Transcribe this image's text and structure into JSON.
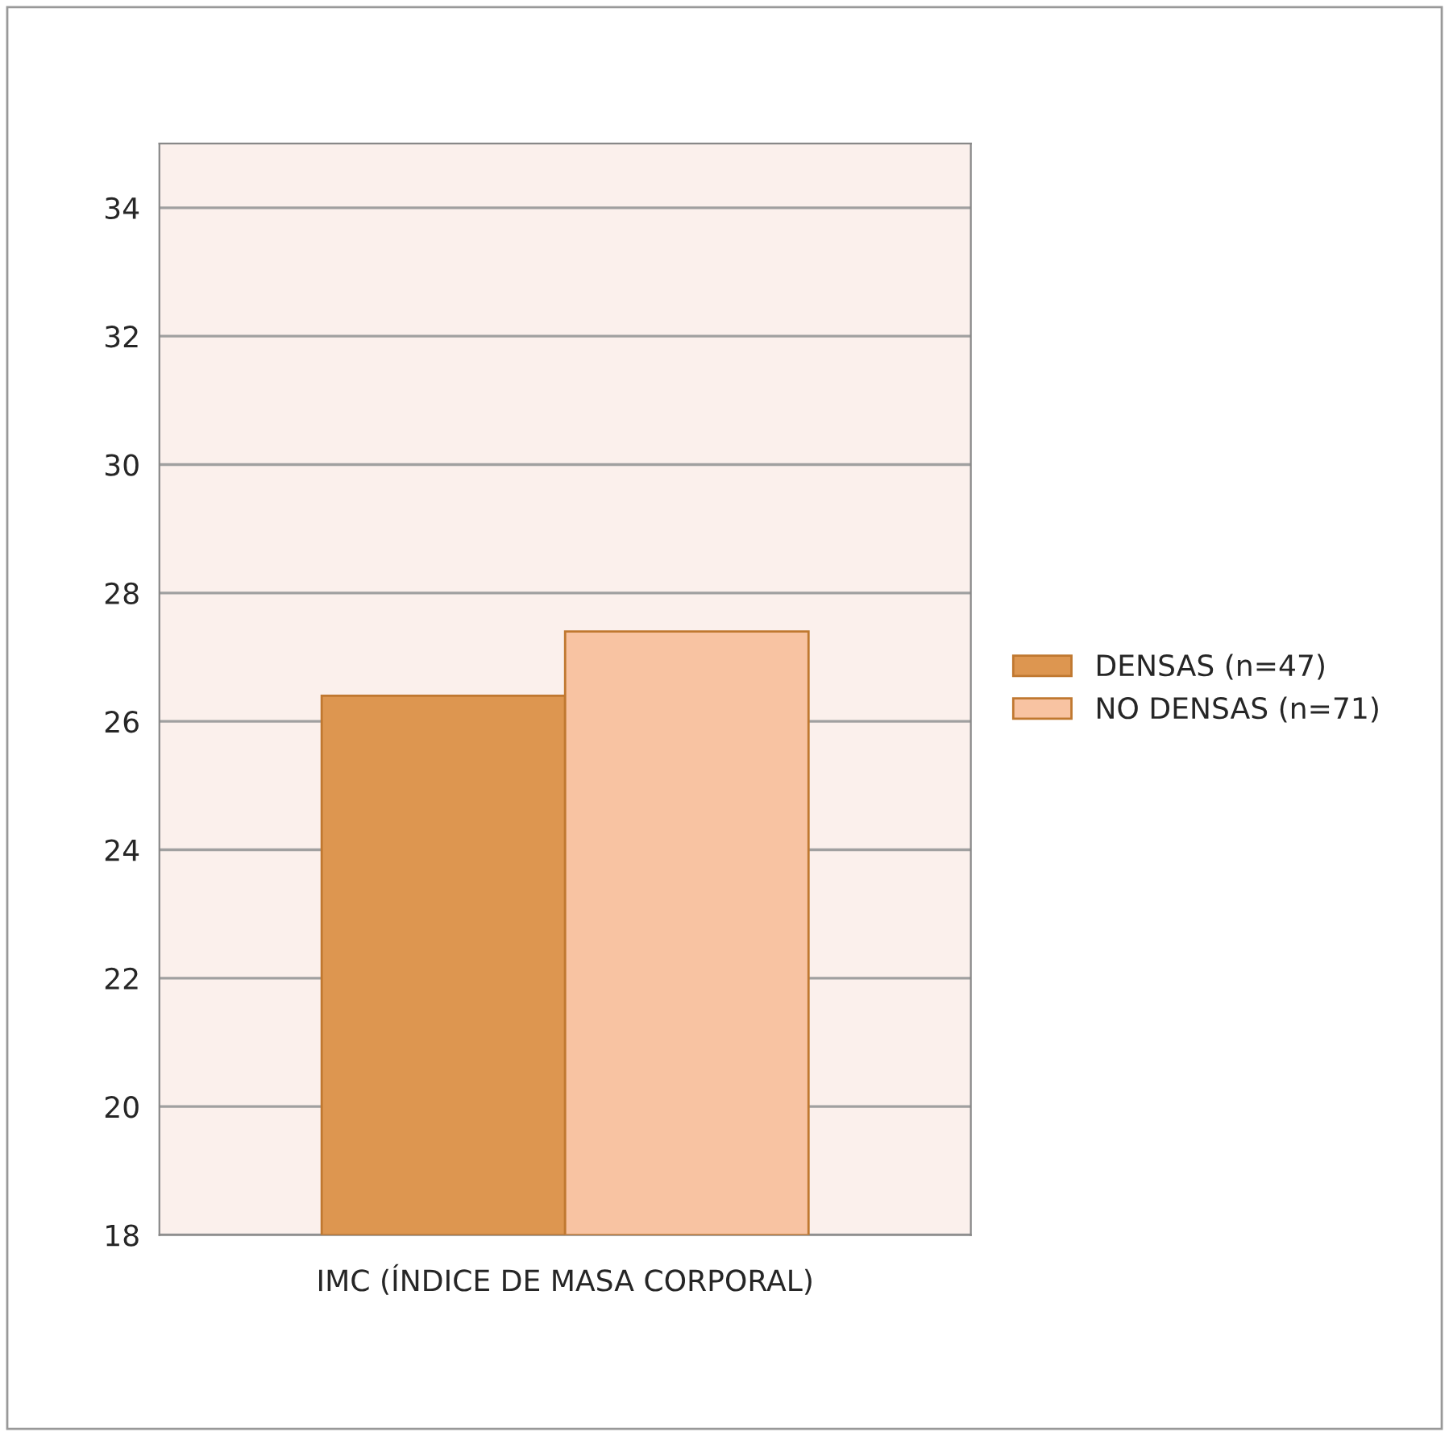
{
  "chart_data": {
    "type": "bar",
    "categories": [
      "IMC (ÍNDICE DE MASA CORPORAL)"
    ],
    "series": [
      {
        "name": "DENSAS (n=47)",
        "color": "#dd9650",
        "values": [
          26.4
        ]
      },
      {
        "name": "NO DENSAS (n=71)",
        "color": "#f8c3a2",
        "values": [
          27.4
        ]
      }
    ],
    "ylim": [
      18,
      35
    ],
    "yticks": [
      18,
      20,
      22,
      24,
      26,
      28,
      30,
      32,
      34
    ],
    "grid": "y",
    "legend": "right"
  }
}
